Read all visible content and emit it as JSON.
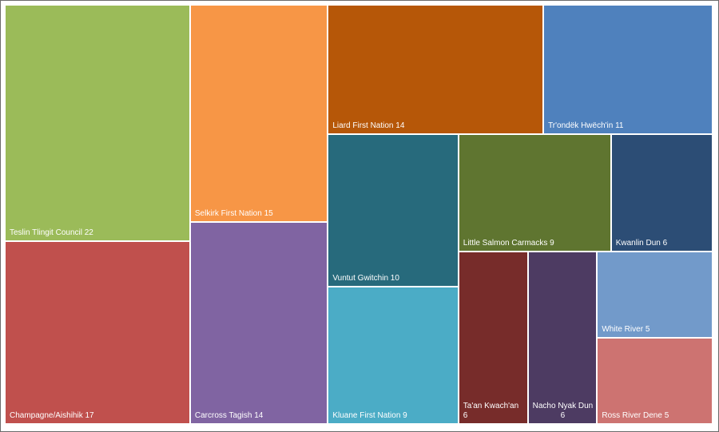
{
  "chart_data": {
    "type": "treemap",
    "title": "",
    "items": [
      {
        "name": "Teslin Tlingit Council",
        "value": 22,
        "color": "#9bbb59"
      },
      {
        "name": "Champagne/Aishihik",
        "value": 17,
        "color": "#c0504d"
      },
      {
        "name": "Selkirk First Nation",
        "value": 15,
        "color": "#f79646"
      },
      {
        "name": "Carcross Tagish",
        "value": 14,
        "color": "#8064a2"
      },
      {
        "name": "Liard First Nation",
        "value": 14,
        "color": "#b65708"
      },
      {
        "name": "Tr'ondëk Hwëch'in",
        "value": 11,
        "color": "#4f81bd"
      },
      {
        "name": "Vuntut Gwitchin",
        "value": 10,
        "color": "#276a7c"
      },
      {
        "name": "Kluane First Nation",
        "value": 9,
        "color": "#4bacc6"
      },
      {
        "name": "Little Salmon Carmacks",
        "value": 9,
        "color": "#5f7530"
      },
      {
        "name": "Kwanlin Dun",
        "value": 6,
        "color": "#2c4d75"
      },
      {
        "name": "Ta'an Kwach'an",
        "value": 6,
        "color": "#772c2a"
      },
      {
        "name": "Nacho Nyak Dun",
        "value": 6,
        "color": "#4d3b62"
      },
      {
        "name": "White River",
        "value": 5,
        "color": "#729aca"
      },
      {
        "name": "Ross River Dene",
        "value": 5,
        "color": "#cd7371"
      }
    ]
  }
}
